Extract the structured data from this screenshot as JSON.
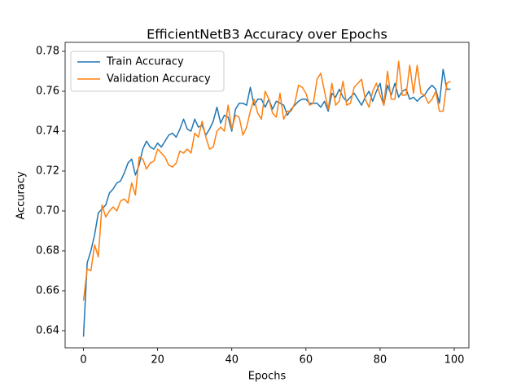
{
  "chart_data": {
    "type": "line",
    "title": "EfficientNetB3 Accuracy over Epochs",
    "xlabel": "Epochs",
    "ylabel": "Accuracy",
    "x": [
      0,
      1,
      2,
      3,
      4,
      5,
      6,
      7,
      8,
      9,
      10,
      11,
      12,
      13,
      14,
      15,
      16,
      17,
      18,
      19,
      20,
      21,
      22,
      23,
      24,
      25,
      26,
      27,
      28,
      29,
      30,
      31,
      32,
      33,
      34,
      35,
      36,
      37,
      38,
      39,
      40,
      41,
      42,
      43,
      44,
      45,
      46,
      47,
      48,
      49,
      50,
      51,
      52,
      53,
      54,
      55,
      56,
      57,
      58,
      59,
      60,
      61,
      62,
      63,
      64,
      65,
      66,
      67,
      68,
      69,
      70,
      71,
      72,
      73,
      74,
      75,
      76,
      77,
      78,
      79,
      80,
      81,
      82,
      83,
      84,
      85,
      86,
      87,
      88,
      89,
      90,
      91,
      92,
      93,
      94,
      95,
      96,
      97,
      98,
      99
    ],
    "series": [
      {
        "name": "Train Accuracy",
        "color": "#1f77b4",
        "values": [
          0.637,
          0.674,
          0.68,
          0.688,
          0.699,
          0.701,
          0.703,
          0.709,
          0.711,
          0.714,
          0.715,
          0.719,
          0.724,
          0.726,
          0.718,
          0.723,
          0.731,
          0.735,
          0.732,
          0.731,
          0.734,
          0.732,
          0.735,
          0.738,
          0.739,
          0.737,
          0.741,
          0.746,
          0.741,
          0.74,
          0.746,
          0.742,
          0.743,
          0.738,
          0.741,
          0.745,
          0.752,
          0.744,
          0.748,
          0.747,
          0.74,
          0.751,
          0.754,
          0.754,
          0.753,
          0.762,
          0.753,
          0.756,
          0.756,
          0.752,
          0.756,
          0.751,
          0.755,
          0.754,
          0.753,
          0.748,
          0.751,
          0.753,
          0.755,
          0.756,
          0.756,
          0.754,
          0.754,
          0.754,
          0.752,
          0.755,
          0.75,
          0.759,
          0.757,
          0.761,
          0.757,
          0.755,
          0.757,
          0.759,
          0.756,
          0.753,
          0.757,
          0.76,
          0.755,
          0.76,
          0.764,
          0.753,
          0.763,
          0.758,
          0.764,
          0.757,
          0.76,
          0.761,
          0.756,
          0.757,
          0.755,
          0.757,
          0.758,
          0.761,
          0.763,
          0.761,
          0.754,
          0.771,
          0.761,
          0.761
        ]
      },
      {
        "name": "Validation Accuracy",
        "color": "#ff7f0e",
        "values": [
          0.655,
          0.671,
          0.67,
          0.683,
          0.677,
          0.703,
          0.697,
          0.7,
          0.702,
          0.7,
          0.705,
          0.706,
          0.704,
          0.714,
          0.708,
          0.727,
          0.726,
          0.721,
          0.724,
          0.725,
          0.731,
          0.729,
          0.727,
          0.723,
          0.722,
          0.724,
          0.73,
          0.729,
          0.731,
          0.729,
          0.739,
          0.737,
          0.745,
          0.737,
          0.731,
          0.732,
          0.74,
          0.742,
          0.74,
          0.753,
          0.741,
          0.748,
          0.747,
          0.738,
          0.742,
          0.75,
          0.756,
          0.749,
          0.746,
          0.76,
          0.756,
          0.749,
          0.747,
          0.759,
          0.746,
          0.75,
          0.75,
          0.754,
          0.763,
          0.762,
          0.759,
          0.753,
          0.754,
          0.766,
          0.769,
          0.76,
          0.751,
          0.764,
          0.753,
          0.755,
          0.765,
          0.753,
          0.754,
          0.762,
          0.764,
          0.766,
          0.756,
          0.752,
          0.76,
          0.764,
          0.758,
          0.753,
          0.77,
          0.756,
          0.756,
          0.775,
          0.758,
          0.758,
          0.773,
          0.759,
          0.773,
          0.759,
          0.758,
          0.754,
          0.756,
          0.76,
          0.75,
          0.75,
          0.764,
          0.765
        ]
      }
    ],
    "xlim": [
      -4.95,
      103.95
    ],
    "ylim": [
      0.6314,
      0.7845
    ],
    "xticks": [
      0,
      20,
      40,
      60,
      80,
      100
    ],
    "yticks": [
      0.64,
      0.66,
      0.68,
      {
        "value": 0.7,
        "label": "0.70"
      },
      0.72,
      0.74,
      0.76,
      0.78
    ],
    "legend": "upper left"
  }
}
